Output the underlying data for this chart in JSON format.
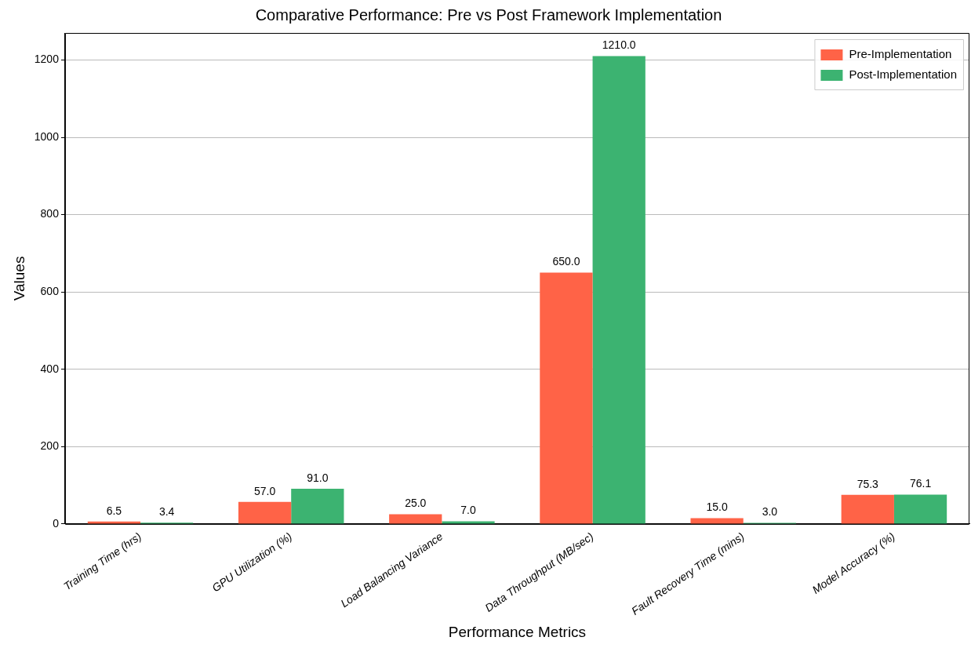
{
  "chart_data": {
    "type": "bar",
    "title": "Comparative Performance: Pre vs Post Framework Implementation",
    "xlabel": "Performance Metrics",
    "ylabel": "Values",
    "categories": [
      "Training Time (hrs)",
      "GPU Utilization (%)",
      "Load Balancing Variance",
      "Data Throughput (MB/sec)",
      "Fault Recovery Time (mins)",
      "Model Accuracy (%)"
    ],
    "series": [
      {
        "name": "Pre-Implementation",
        "color": "#ff6347",
        "values": [
          6.5,
          57.0,
          25.0,
          650.0,
          15.0,
          75.3
        ],
        "value_labels": [
          "6.5",
          "57.0",
          "25.0",
          "650.0",
          "15.0",
          "75.3"
        ]
      },
      {
        "name": "Post-Implementation",
        "color": "#3cb371",
        "values": [
          3.4,
          91.0,
          7.0,
          1210.0,
          3.0,
          76.1
        ],
        "value_labels": [
          "3.4",
          "91.0",
          "7.0",
          "1210.0",
          "3.0",
          "76.1"
        ]
      }
    ],
    "ylim": [
      0,
      1270
    ],
    "yticks": [
      0,
      200,
      400,
      600,
      800,
      1000,
      1200
    ],
    "grid": "y",
    "legend": "top right"
  }
}
